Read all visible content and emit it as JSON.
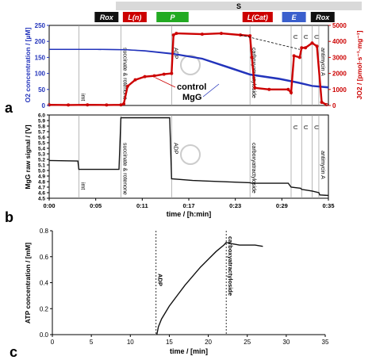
{
  "colors": {
    "blue": "#2233bb",
    "red": "#cc0000",
    "green": "#22aa22",
    "black": "#111111",
    "grey_bar": "#d9d9d9",
    "e_blue": "#3a5fcd"
  },
  "states_bar": {
    "s_label": "S",
    "boxes": [
      {
        "label": "Rox",
        "style": "black",
        "t_start": 0.058,
        "t_end": 0.062
      },
      {
        "label": "L(n)",
        "style": "red",
        "t_start": 0.085,
        "t_end": 0.094
      },
      {
        "label": "P",
        "style": "green",
        "t_start": 0.118,
        "t_end": 0.14
      },
      {
        "label": "L(Cat)",
        "style": "red",
        "t_start": 0.208,
        "t_end": 0.228
      },
      {
        "label": "E",
        "style": "blue",
        "t_start": 0.253,
        "t_end": 0.259
      },
      {
        "label": "Rox",
        "style": "black",
        "t_start": 0.282,
        "t_end": 0.29
      }
    ]
  },
  "panel_labels": {
    "a": "a",
    "b": "b",
    "c": "c"
  },
  "chart_data": [
    {
      "type": "line",
      "panel": "a",
      "ylabel_left": "O2 concentration / [µM]",
      "ylabel_right": "JO2 / [pmol·s⁻¹·mg⁻¹]",
      "ylim_left": [
        0,
        250
      ],
      "yticks_left": [
        "0",
        "50",
        "100",
        "150",
        "200",
        "250"
      ],
      "ylim_right": [
        0,
        5000
      ],
      "yticks_right": [
        "0",
        "1000",
        "2000",
        "3000",
        "4000",
        "5000"
      ],
      "xlim": [
        0,
        0.292
      ],
      "legend": [
        "control",
        "MgG"
      ],
      "series": [
        {
          "name": "control",
          "axis": "left",
          "color": "blue",
          "x": [
            0,
            0.05,
            0.08,
            0.1,
            0.13,
            0.16,
            0.19,
            0.21,
            0.24,
            0.26,
            0.275,
            0.292
          ],
          "y": [
            175,
            175,
            174,
            170,
            160,
            145,
            115,
            95,
            82,
            70,
            60,
            55
          ]
        },
        {
          "name": "MgG",
          "axis": "left",
          "color": "blue",
          "x": [
            0,
            0.05,
            0.08,
            0.1,
            0.13,
            0.16,
            0.19,
            0.21,
            0.24,
            0.26,
            0.275,
            0.292
          ],
          "y": [
            175,
            175,
            174,
            171,
            162,
            147,
            118,
            98,
            85,
            73,
            62,
            58
          ]
        },
        {
          "name": "JO2",
          "axis": "right",
          "color": "red",
          "x": [
            0,
            0.02,
            0.04,
            0.06,
            0.075,
            0.078,
            0.082,
            0.09,
            0.1,
            0.11,
            0.12,
            0.128,
            0.13,
            0.133,
            0.16,
            0.18,
            0.2,
            0.21,
            0.212,
            0.215,
            0.23,
            0.25,
            0.253,
            0.256,
            0.262,
            0.264,
            0.268,
            0.275,
            0.28,
            0.285,
            0.29
          ],
          "y": [
            40,
            30,
            40,
            30,
            40,
            100,
            1200,
            1600,
            1800,
            1850,
            1950,
            2000,
            4400,
            4500,
            4450,
            4500,
            4400,
            4350,
            3000,
            1100,
            1000,
            1000,
            800,
            3100,
            3000,
            3600,
            3600,
            3900,
            3700,
            200,
            50
          ]
        }
      ],
      "annotations": [
        {
          "text": "imt",
          "t": 0.031
        },
        {
          "text": "succinate & rotenone",
          "t": 0.075
        },
        {
          "text": "ADP",
          "t": 0.128
        },
        {
          "text": "carboxyatractyloside",
          "t": 0.21
        },
        {
          "text": "U",
          "t": 0.253
        },
        {
          "text": "U",
          "t": 0.264
        },
        {
          "text": "U",
          "t": 0.275
        },
        {
          "text": "antimycin A",
          "t": 0.282
        }
      ]
    },
    {
      "type": "line",
      "panel": "b",
      "ylabel": "MgG raw signal / [V]",
      "xlabel": "time / [h:min]",
      "ylim": [
        4.5,
        6.0
      ],
      "yticks": [
        "4.5",
        "4.6",
        "4.7",
        "4.8",
        "4.9",
        "5.0",
        "5.1",
        "5.2",
        "5.3",
        "5.4",
        "5.5",
        "5.6",
        "5.7",
        "5.8",
        "5.9",
        "6.0"
      ],
      "xticks": [
        "0:00",
        "0:05",
        "0:11",
        "0:17",
        "0:23",
        "0:29",
        "0:35"
      ],
      "xlim": [
        0,
        0.292
      ],
      "series": [
        {
          "name": "MgG",
          "color": "black",
          "x": [
            0,
            0.03,
            0.031,
            0.073,
            0.075,
            0.126,
            0.128,
            0.15,
            0.21,
            0.212,
            0.25,
            0.253,
            0.263,
            0.264,
            0.275,
            0.282,
            0.283,
            0.292
          ],
          "y": [
            5.18,
            5.17,
            5.02,
            5.02,
            5.95,
            5.95,
            4.85,
            4.82,
            4.78,
            4.77,
            4.77,
            4.7,
            4.68,
            4.66,
            4.63,
            4.6,
            4.56,
            4.55
          ]
        }
      ],
      "annotations": [
        {
          "text": "imt",
          "t": 0.031
        },
        {
          "text": "succinate & rotenone",
          "t": 0.075
        },
        {
          "text": "ADP",
          "t": 0.128
        },
        {
          "text": "carboxyatractyloside",
          "t": 0.21
        },
        {
          "text": "U",
          "t": 0.253
        },
        {
          "text": "U",
          "t": 0.264
        },
        {
          "text": "U",
          "t": 0.275
        },
        {
          "text": "antimycin A",
          "t": 0.282
        }
      ]
    },
    {
      "type": "line",
      "panel": "c",
      "ylabel": "ATP concentration / [mM]",
      "xlabel": "time / [min]",
      "xlim": [
        0,
        35
      ],
      "xticks": [
        "0",
        "5",
        "10",
        "15",
        "20",
        "25",
        "30",
        "35"
      ],
      "ylim": [
        0,
        0.8
      ],
      "yticks": [
        "0.0",
        "0.2",
        "0.4",
        "0.6",
        "0.8"
      ],
      "series": [
        {
          "name": "ATP",
          "color": "black",
          "x": [
            13.4,
            13.6,
            14,
            15,
            16,
            17,
            18,
            19,
            20,
            21,
            22,
            22.3,
            23,
            24,
            25,
            26,
            27
          ],
          "y": [
            0,
            0.06,
            0.12,
            0.22,
            0.3,
            0.38,
            0.45,
            0.52,
            0.58,
            0.64,
            0.69,
            0.71,
            0.7,
            0.69,
            0.69,
            0.69,
            0.68
          ]
        }
      ],
      "annotations": [
        {
          "text": "ADP",
          "x": 13.3
        },
        {
          "text": "carboxyatractyloside",
          "x": 22.3
        }
      ]
    }
  ]
}
